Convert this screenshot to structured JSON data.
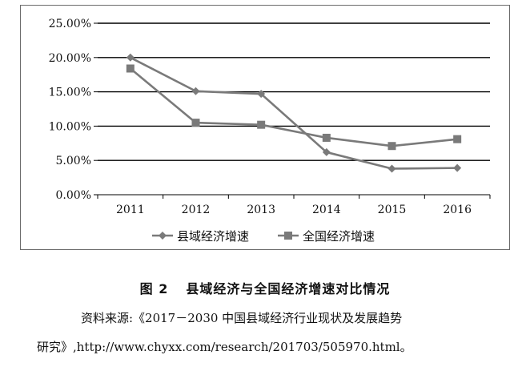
{
  "chart_data": {
    "type": "line",
    "categories": [
      "2011",
      "2012",
      "2013",
      "2014",
      "2015",
      "2016"
    ],
    "series": [
      {
        "name": "县域经济增速",
        "marker": "diamond",
        "color": "#7a7a7a",
        "values": [
          20.0,
          15.1,
          14.7,
          6.2,
          3.8,
          3.9
        ]
      },
      {
        "name": "全国经济增速",
        "marker": "square",
        "color": "#7a7a7a",
        "values": [
          18.4,
          10.5,
          10.2,
          8.3,
          7.1,
          8.1
        ]
      }
    ],
    "ylim": [
      0,
      25
    ],
    "yticks": [
      0,
      5,
      10,
      15,
      20,
      25
    ],
    "ytick_labels": [
      "0.00%",
      "5.00%",
      "10.00%",
      "15.00%",
      "20.00%",
      "25.00%"
    ],
    "grid": true,
    "legend_position": "bottom-center",
    "title": "",
    "xlabel": "",
    "ylabel": ""
  },
  "caption": {
    "figure_number": "图 2",
    "title": "县域经济与全国经济增速对比情况",
    "source_line1": "资料来源:《2017－2030 中国县域经济行业现状及发展趋势",
    "source_line2": "研究》,http://www.chyxx.com/research/201703/505970.html。"
  }
}
